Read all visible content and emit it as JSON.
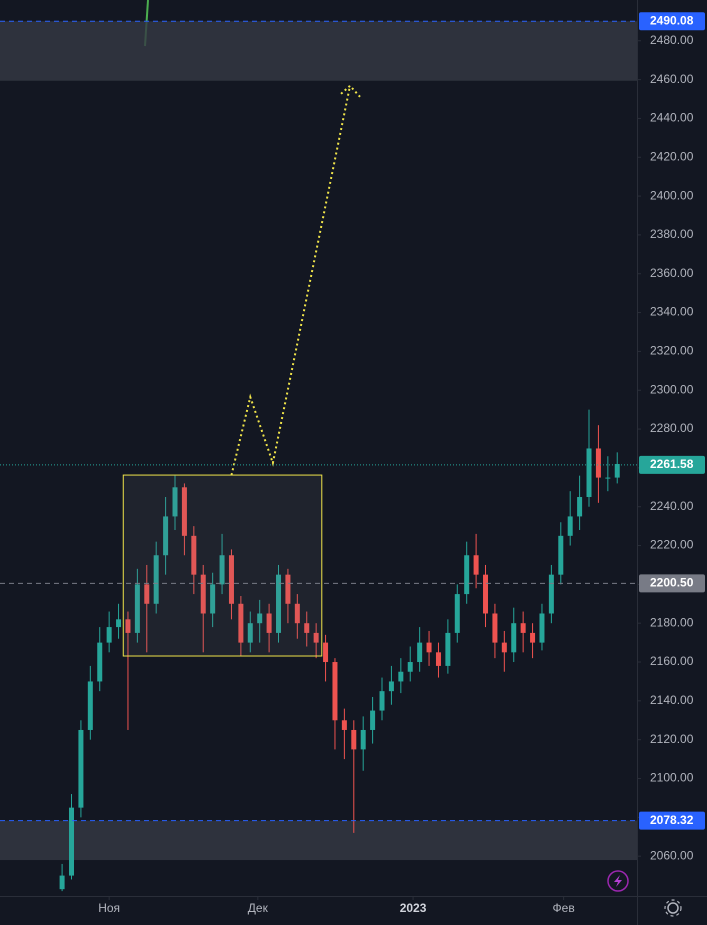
{
  "chart_data": {
    "type": "candlestick",
    "xlim": [
      -6.6,
      61.1
    ],
    "ylim": [
      2040,
      2501
    ],
    "xticks": [
      {
        "value": 5,
        "label": "Ноя"
      },
      {
        "value": 20.8,
        "label": "Дек"
      },
      {
        "value": 37.3,
        "label": "2023"
      },
      {
        "value": 53.3,
        "label": "Фев"
      }
    ],
    "yticks": [
      {
        "value": 2060,
        "label": "2060.00"
      },
      {
        "value": 2080,
        "label": "2080.00"
      },
      {
        "value": 2100,
        "label": "2100.00"
      },
      {
        "value": 2120,
        "label": "2120.00"
      },
      {
        "value": 2140,
        "label": "2140.00"
      },
      {
        "value": 2160,
        "label": "2160.00"
      },
      {
        "value": 2180,
        "label": "2180.00"
      },
      {
        "value": 2200,
        "label": "2200.00"
      },
      {
        "value": 2220,
        "label": "2220.00"
      },
      {
        "value": 2240,
        "label": "2240.00"
      },
      {
        "value": 2260,
        "label": "2260.00"
      },
      {
        "value": 2280,
        "label": "2280.00"
      },
      {
        "value": 2300,
        "label": "2300.00"
      },
      {
        "value": 2320,
        "label": "2320.00"
      },
      {
        "value": 2340,
        "label": "2340.00"
      },
      {
        "value": 2360,
        "label": "2360.00"
      },
      {
        "value": 2380,
        "label": "2380.00"
      },
      {
        "value": 2400,
        "label": "2400.00"
      },
      {
        "value": 2420,
        "label": "2420.00"
      },
      {
        "value": 2440,
        "label": "2440.00"
      },
      {
        "value": 2460,
        "label": "2460.00"
      },
      {
        "value": 2480,
        "label": "2480.00"
      }
    ],
    "up_color": "#26a69a",
    "down_color": "#ef5350",
    "open": [
      2043,
      2050,
      2085,
      2125,
      2150,
      2170,
      2178,
      2182,
      2175,
      2200,
      2190,
      2215,
      2235,
      2250,
      2225,
      2205,
      2185,
      2200,
      2215,
      2190,
      2170,
      2180,
      2185,
      2175,
      2205,
      2190,
      2180,
      2175,
      2170,
      2160,
      2130,
      2125,
      2115,
      2125,
      2135,
      2145,
      2150,
      2155,
      2160,
      2170,
      2165,
      2158,
      2175,
      2195,
      2215,
      2205,
      2185,
      2170,
      2165,
      2180,
      2175,
      2170,
      2185,
      2205,
      2225,
      2235,
      2245,
      2270,
      2255,
      2255
    ],
    "high": [
      2056,
      2092,
      2130,
      2158,
      2178,
      2186,
      2190,
      2186,
      2208,
      2210,
      2222,
      2245,
      2256,
      2252,
      2230,
      2210,
      2206,
      2226,
      2218,
      2194,
      2186,
      2192,
      2190,
      2210,
      2208,
      2195,
      2186,
      2180,
      2174,
      2162,
      2136,
      2130,
      2132,
      2142,
      2152,
      2158,
      2162,
      2168,
      2178,
      2176,
      2170,
      2182,
      2200,
      2222,
      2226,
      2210,
      2190,
      2176,
      2188,
      2186,
      2180,
      2190,
      2210,
      2232,
      2248,
      2256,
      2290,
      2282,
      2266,
      2268
    ],
    "low": [
      2042,
      2048,
      2080,
      2120,
      2145,
      2165,
      2172,
      2125,
      2170,
      2165,
      2185,
      2205,
      2228,
      2215,
      2195,
      2165,
      2178,
      2195,
      2182,
      2163,
      2165,
      2170,
      2165,
      2170,
      2180,
      2172,
      2168,
      2162,
      2150,
      2115,
      2110,
      2072,
      2104,
      2118,
      2130,
      2138,
      2144,
      2150,
      2155,
      2158,
      2152,
      2154,
      2170,
      2190,
      2198,
      2178,
      2162,
      2155,
      2160,
      2165,
      2162,
      2166,
      2180,
      2200,
      2220,
      2228,
      2240,
      2242,
      2248,
      2252
    ],
    "close": [
      2050,
      2085,
      2125,
      2150,
      2170,
      2178,
      2182,
      2175,
      2200,
      2190,
      2215,
      2235,
      2250,
      2225,
      2205,
      2185,
      2200,
      2215,
      2190,
      2170,
      2180,
      2185,
      2175,
      2205,
      2190,
      2180,
      2175,
      2170,
      2160,
      2130,
      2125,
      2115,
      2125,
      2135,
      2145,
      2150,
      2155,
      2160,
      2170,
      2165,
      2158,
      2175,
      2195,
      2215,
      2205,
      2185,
      2170,
      2165,
      2180,
      2175,
      2170,
      2185,
      2205,
      2225,
      2235,
      2245,
      2270,
      2255,
      2255,
      2262
    ],
    "zones": [
      {
        "from": 2459.4,
        "to": 2490.08
      },
      {
        "from": 2058,
        "to": 2078.32
      }
    ],
    "levels": [
      {
        "value": 2490.08,
        "color": "#2962ff",
        "style": "dashed"
      },
      {
        "value": 2261.58,
        "color": "#26a69a",
        "style": "dotted"
      },
      {
        "value": 2200.5,
        "label": "2200.50",
        "color": "#787b86",
        "style": "dashed"
      },
      {
        "value": 2078.32,
        "color": "#2962ff",
        "style": "dashed"
      }
    ],
    "box": {
      "x": [
        6.5,
        27.6
      ],
      "y": [
        2163.1,
        2256.3
      ],
      "color": "#f0e44a"
    },
    "path": {
      "x": [
        18,
        20,
        22.4,
        30.6
      ],
      "y": [
        2256.3,
        2296.5,
        2262.5,
        2456.8
      ],
      "color": "#f0e44a"
    }
  }
}
